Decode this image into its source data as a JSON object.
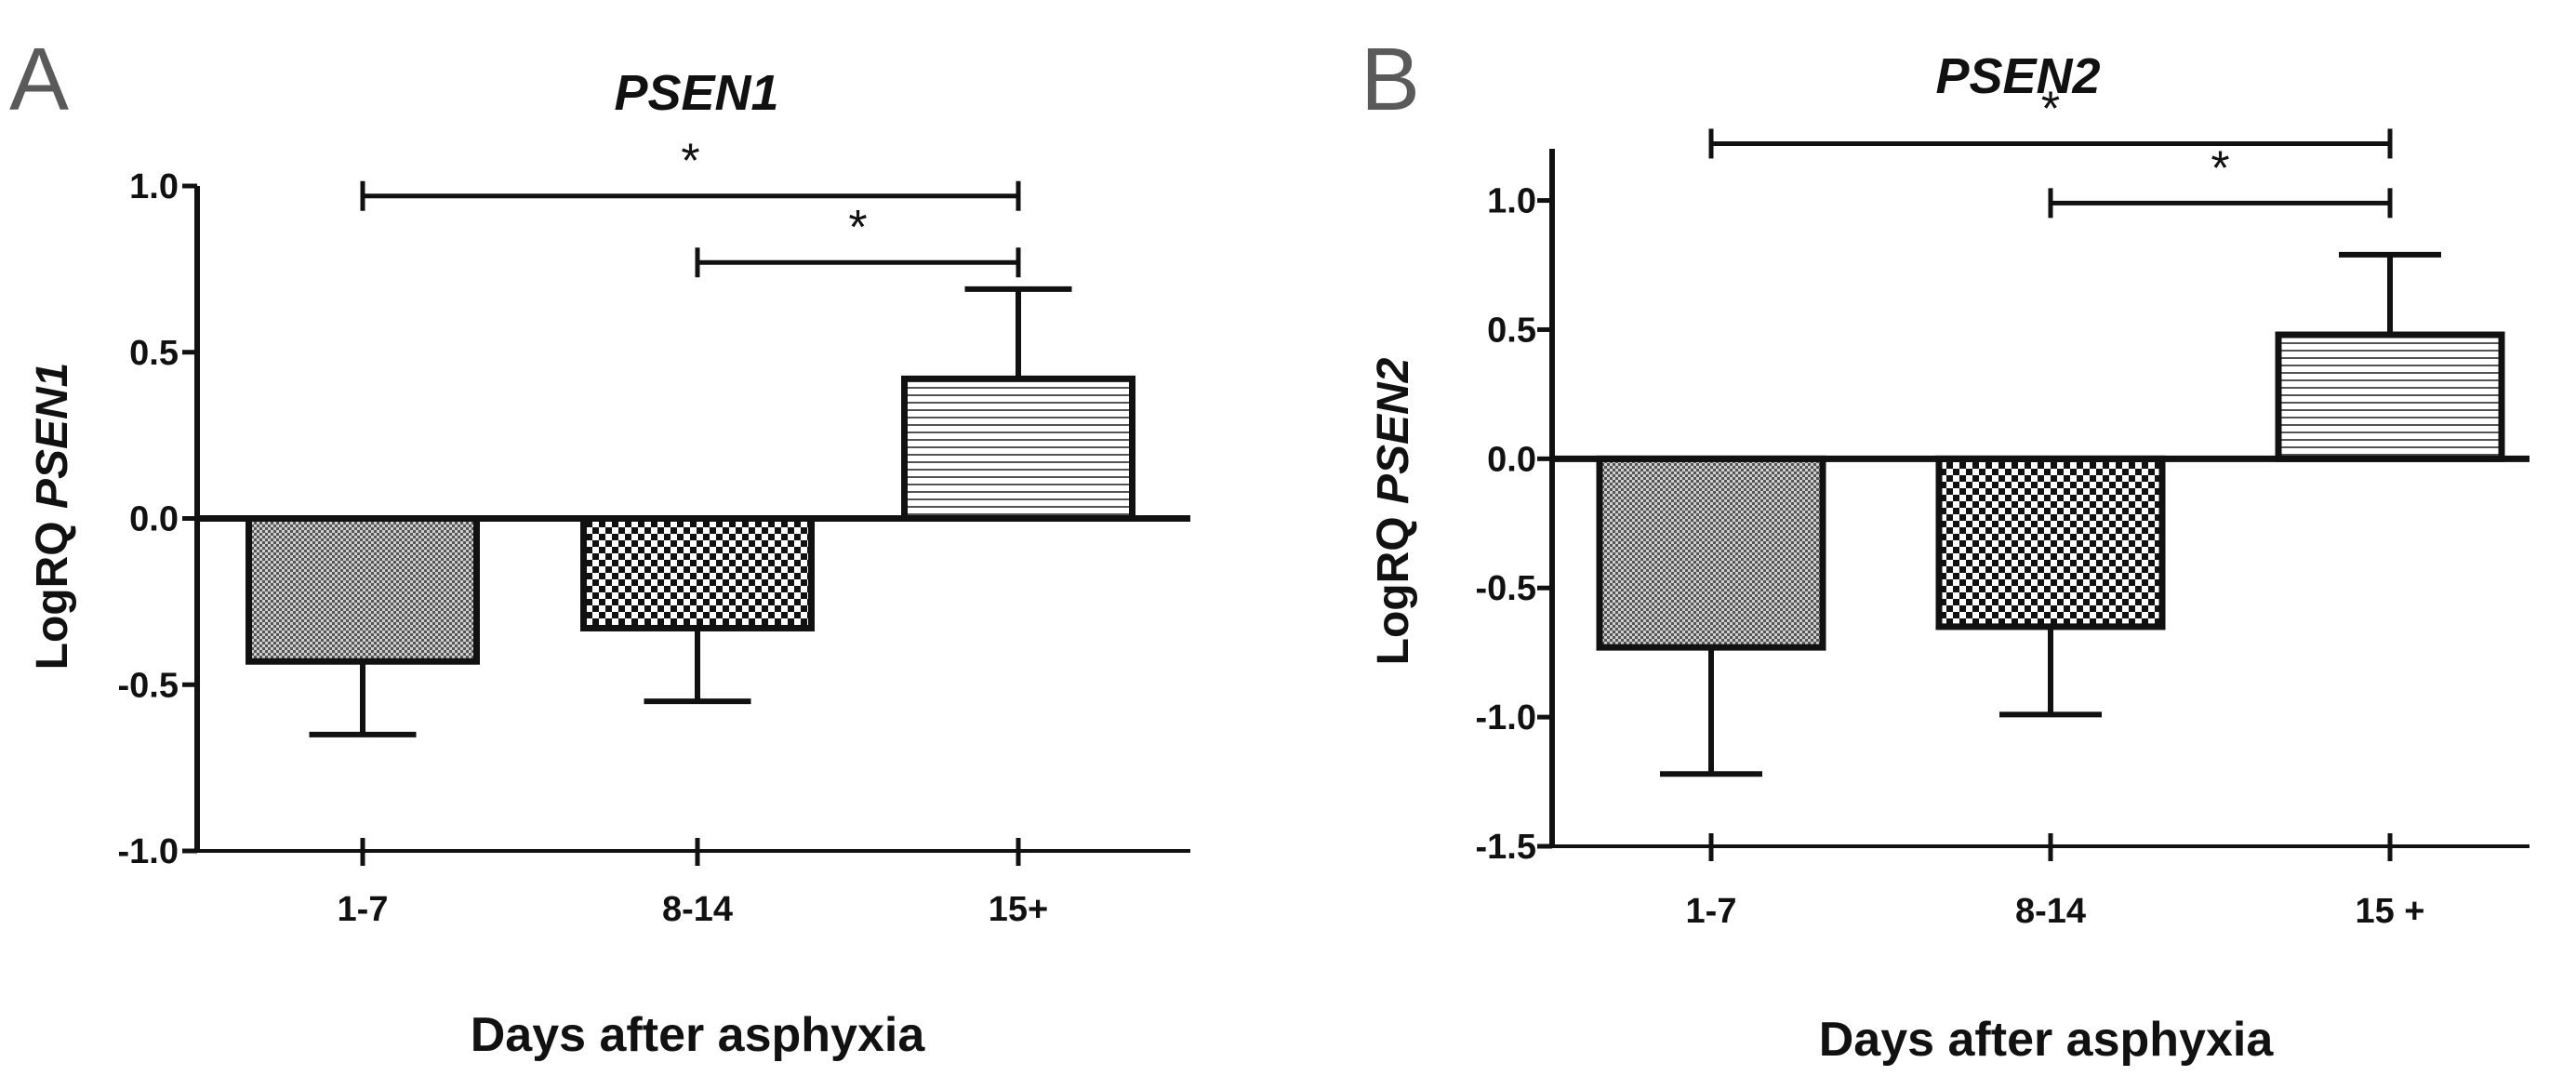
{
  "chart_data": [
    {
      "panel": "A",
      "type": "bar",
      "title": "PSEN1",
      "ylabel_prefix": "LogRQ ",
      "ylabel_italic": "PSEN1",
      "xlabel": "Days after asphyxia",
      "categories": [
        "1-7",
        "8-14",
        "15+"
      ],
      "values": [
        -0.43,
        -0.33,
        0.42
      ],
      "errors": [
        0.22,
        0.22,
        0.27
      ],
      "patterns": [
        "fine",
        "checker",
        "hlines"
      ],
      "ylim": [
        -1.0,
        1.0
      ],
      "yticks": [
        -1.0,
        -0.5,
        0.0,
        0.5,
        1.0
      ],
      "ytick_labels": [
        "-1.0",
        "-0.5",
        "0.0",
        "0.5",
        "1.0"
      ],
      "significance": [
        {
          "from": 0,
          "to": 2,
          "y": 0.97,
          "label": "*"
        },
        {
          "from": 1,
          "to": 2,
          "y": 0.77,
          "label": "*"
        }
      ]
    },
    {
      "panel": "B",
      "type": "bar",
      "title": "PSEN2",
      "ylabel_prefix": "LogRQ ",
      "ylabel_italic": "PSEN2",
      "xlabel": "Days after asphyxia",
      "categories": [
        "1-7",
        "8-14",
        "15 +"
      ],
      "values": [
        -0.73,
        -0.65,
        0.48
      ],
      "errors": [
        0.49,
        0.34,
        0.31
      ],
      "patterns": [
        "fine",
        "checker",
        "hlines"
      ],
      "ylim": [
        -1.5,
        1.2
      ],
      "yticks": [
        -1.5,
        -1.0,
        -0.5,
        0.0,
        0.5,
        1.0
      ],
      "ytick_labels": [
        "-1.5",
        "-1.0",
        "-0.5",
        "0.0",
        "0.5",
        "1.0"
      ],
      "significance": [
        {
          "from": 0,
          "to": 2,
          "y": 1.22,
          "label": "*"
        },
        {
          "from": 1,
          "to": 2,
          "y": 0.99,
          "label": "*"
        }
      ]
    }
  ]
}
